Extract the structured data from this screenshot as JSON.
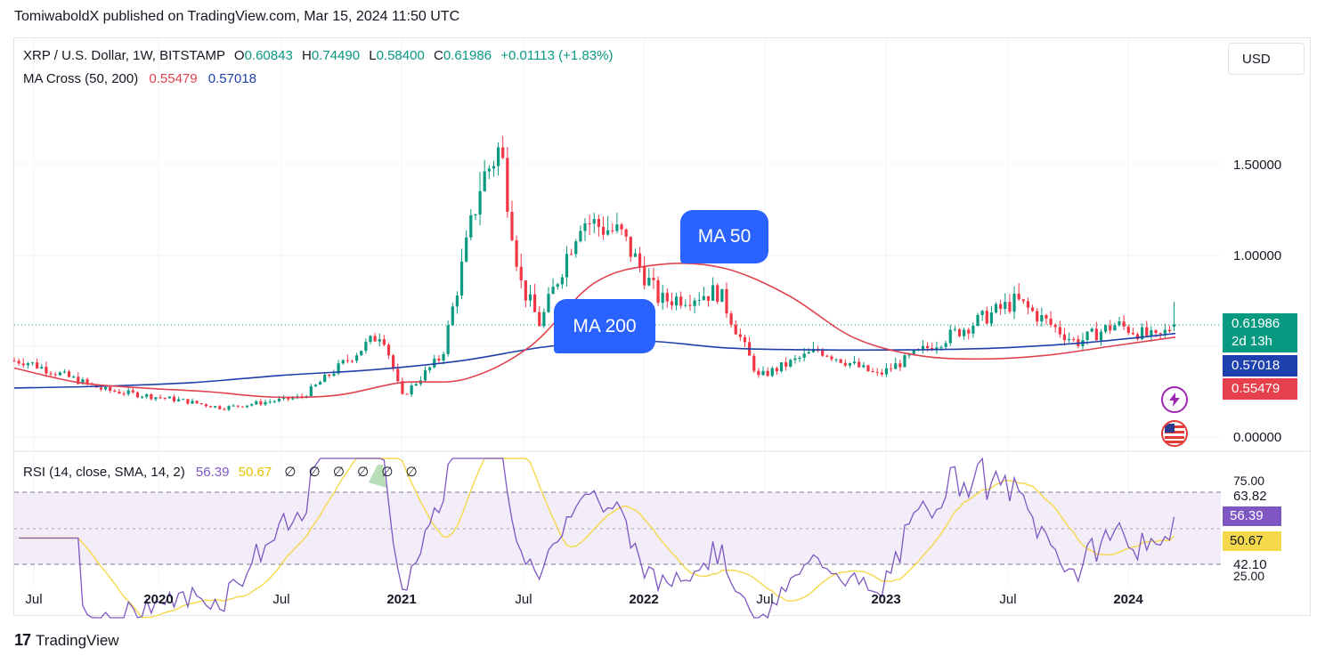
{
  "published_line": "TomiwaboldX published on TradingView.com, Mar 15, 2024 11:50 UTC",
  "legend": {
    "symbol": "XRP / U.S. Dollar, 1W, BITSTAMP",
    "o_label": "O",
    "o_value": "0.60843",
    "h_label": "H",
    "h_value": "0.74490",
    "l_label": "L",
    "l_value": "0.58400",
    "c_label": "C",
    "c_value": "0.61986",
    "change": "+0.01113 (+1.83%)",
    "ma_label": "MA Cross (50, 200)",
    "ma50_value": "0.55479",
    "ma200_value": "0.57018",
    "rsi_label": "RSI (14, close, SMA, 14, 2)",
    "rsi_value": "56.39",
    "rsi_sma_value": "50.67",
    "rsi_empty": [
      "∅",
      "∅",
      "∅",
      "∅",
      "∅",
      "∅"
    ]
  },
  "currency_button": "USD",
  "price_axis": [
    "1.50000",
    "1.00000",
    "0.00000"
  ],
  "price_tags": {
    "last": "0.61986",
    "countdown": "2d 13h",
    "ma200": "0.57018",
    "ma50": "0.55479"
  },
  "rsi_axis": [
    "75.00",
    "63.82",
    "42.10",
    "25.00"
  ],
  "rsi_tags": {
    "rsi": "56.39",
    "sma": "50.67"
  },
  "time_axis": [
    "Jul",
    "2020",
    "Jul",
    "2021",
    "Jul",
    "2022",
    "Jul",
    "2023",
    "Jul",
    "2024"
  ],
  "callouts": {
    "ma50": "MA 50",
    "ma200": "MA 200"
  },
  "brand": "TradingView",
  "colors": {
    "up": "#089981",
    "down": "#f23645",
    "ma50": "#e0424f",
    "ma200": "#1f3fa8",
    "rsi": "#7e57c2",
    "rsi_sma": "#f5d94a",
    "callout": "#2962ff"
  },
  "chart_data": [
    {
      "type": "candlestick",
      "title": "XRP / U.S. Dollar, 1W, BITSTAMP",
      "x_range": [
        "2019-05",
        "2024-03"
      ],
      "y_label_ticks": [
        0.0,
        1.0,
        1.5
      ],
      "close_approx": [
        {
          "date": "2019-05",
          "value": 0.42
        },
        {
          "date": "2019-09",
          "value": 0.26
        },
        {
          "date": "2020-01",
          "value": 0.2
        },
        {
          "date": "2020-03",
          "value": 0.16
        },
        {
          "date": "2020-07",
          "value": 0.22
        },
        {
          "date": "2020-11",
          "value": 0.58
        },
        {
          "date": "2020-12",
          "value": 0.22
        },
        {
          "date": "2021-02",
          "value": 0.45
        },
        {
          "date": "2021-04",
          "value": 1.4
        },
        {
          "date": "2021-05",
          "value": 1.6
        },
        {
          "date": "2021-06",
          "value": 0.85
        },
        {
          "date": "2021-07",
          "value": 0.62
        },
        {
          "date": "2021-09",
          "value": 1.2
        },
        {
          "date": "2021-11",
          "value": 1.12
        },
        {
          "date": "2022-01",
          "value": 0.75
        },
        {
          "date": "2022-04",
          "value": 0.8
        },
        {
          "date": "2022-06",
          "value": 0.33
        },
        {
          "date": "2022-09",
          "value": 0.48
        },
        {
          "date": "2022-12",
          "value": 0.34
        },
        {
          "date": "2023-03",
          "value": 0.52
        },
        {
          "date": "2023-07",
          "value": 0.75
        },
        {
          "date": "2023-10",
          "value": 0.52
        },
        {
          "date": "2023-12",
          "value": 0.62
        },
        {
          "date": "2024-02",
          "value": 0.54
        },
        {
          "date": "2024-03",
          "value": 0.62
        }
      ],
      "series": [
        {
          "name": "MA 50",
          "values_approx": [
            0.38,
            0.3,
            0.27,
            0.25,
            0.22,
            0.23,
            0.3,
            0.32,
            0.5,
            0.85,
            0.95,
            0.93,
            0.78,
            0.55,
            0.45,
            0.43,
            0.45,
            0.5,
            0.55
          ]
        },
        {
          "name": "MA 200",
          "values_approx": [
            0.27,
            0.28,
            0.3,
            0.34,
            0.37,
            0.42,
            0.5,
            0.53,
            0.49,
            0.48,
            0.48,
            0.49,
            0.52,
            0.57
          ]
        }
      ],
      "last": {
        "open": 0.60843,
        "high": 0.7449,
        "low": 0.584,
        "close": 0.61986,
        "change": 0.01113,
        "change_pct": 1.83
      }
    },
    {
      "type": "line",
      "title": "RSI (14, close, SMA, 14, 2)",
      "ylim": [
        25,
        75
      ],
      "bands": [
        42.1,
        63.82
      ],
      "series": [
        {
          "name": "RSI",
          "last": 56.39
        },
        {
          "name": "SMA",
          "last": 50.67
        }
      ]
    }
  ]
}
